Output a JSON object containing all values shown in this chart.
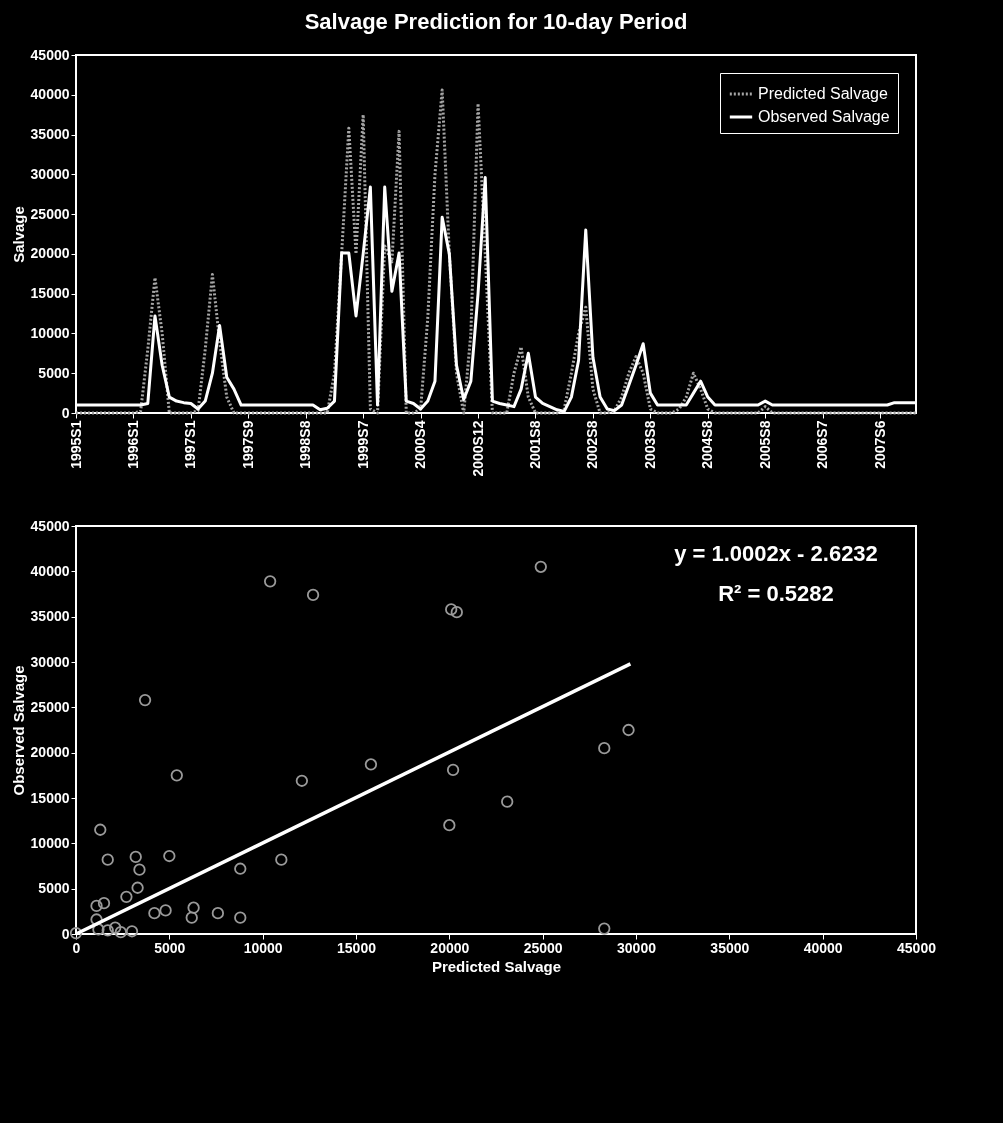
{
  "chart_data": [
    {
      "type": "line",
      "title": "Salvage Prediction for 10-day Period",
      "ylabel": "Salvage",
      "categories": [
        "1995S1",
        null,
        null,
        null,
        null,
        null,
        null,
        null,
        "1996S1",
        null,
        null,
        null,
        null,
        null,
        null,
        null,
        "1997S1",
        null,
        null,
        null,
        null,
        null,
        null,
        null,
        "1997S9",
        null,
        null,
        null,
        null,
        null,
        null,
        null,
        "1998S8",
        null,
        null,
        null,
        null,
        null,
        null,
        null,
        "1999S7",
        null,
        null,
        null,
        null,
        null,
        null,
        null,
        "2000S4",
        null,
        null,
        null,
        null,
        null,
        null,
        null,
        "2000S12",
        null,
        null,
        null,
        null,
        null,
        null,
        null,
        "2001S8",
        null,
        null,
        null,
        null,
        null,
        null,
        null,
        "2002S8",
        null,
        null,
        null,
        null,
        null,
        null,
        null,
        "2003S8",
        null,
        null,
        null,
        null,
        null,
        null,
        null,
        "2004S8",
        null,
        null,
        null,
        null,
        null,
        null,
        null,
        "2005S8",
        null,
        null,
        null,
        null,
        null,
        null,
        null,
        "2006S7",
        null,
        null,
        null,
        null,
        null,
        null,
        null,
        "2007S6",
        null,
        null,
        null,
        null,
        null
      ],
      "series": [
        {
          "name": "Predicted Salvage",
          "color": "#a6a6a6",
          "line_style": "dotted",
          "values": [
            0,
            0,
            0,
            0,
            0,
            0,
            0,
            0,
            0,
            200,
            8000,
            17000,
            10000,
            0,
            0,
            0,
            0,
            300,
            8000,
            17400,
            9000,
            2000,
            0,
            0,
            0,
            0,
            0,
            0,
            0,
            0,
            0,
            0,
            0,
            0,
            0,
            0,
            5000,
            20000,
            35800,
            20000,
            37500,
            500,
            0,
            21000,
            19000,
            35400,
            0,
            0,
            500,
            12000,
            30000,
            40600,
            20000,
            5000,
            0,
            10000,
            38900,
            20000,
            0,
            0,
            0,
            5000,
            8300,
            2000,
            0,
            0,
            0,
            0,
            500,
            5000,
            10000,
            13300,
            3000,
            0,
            0,
            300,
            2000,
            5000,
            7100,
            5000,
            500,
            0,
            0,
            0,
            500,
            2000,
            5000,
            3000,
            500,
            0,
            0,
            0,
            0,
            0,
            0,
            0,
            800,
            0,
            0,
            0,
            0,
            0,
            0,
            0,
            0,
            0,
            0,
            0,
            0,
            0,
            0,
            0,
            0,
            0,
            0,
            0,
            0,
            0
          ]
        },
        {
          "name": "Observed Salvage",
          "color": "#ffffff",
          "line_style": "solid",
          "values": [
            1000,
            1000,
            1000,
            1000,
            1000,
            1000,
            1000,
            1000,
            1000,
            1000,
            1200,
            12200,
            6000,
            2000,
            1500,
            1300,
            1200,
            500,
            1500,
            5000,
            11000,
            4500,
            3000,
            1000,
            1000,
            1000,
            1000,
            1000,
            1000,
            1000,
            1000,
            1000,
            1000,
            1000,
            400,
            600,
            1500,
            20100,
            20100,
            12200,
            20000,
            28400,
            1000,
            28400,
            15300,
            20100,
            1500,
            1200,
            500,
            1500,
            4000,
            24600,
            20000,
            6000,
            1700,
            4000,
            15000,
            29600,
            1500,
            1200,
            1000,
            800,
            3000,
            7500,
            2000,
            1200,
            800,
            400,
            200,
            2000,
            6600,
            23000,
            7000,
            2000,
            500,
            300,
            1000,
            3500,
            6000,
            8700,
            2500,
            1000,
            1000,
            1000,
            1000,
            1000,
            2500,
            4000,
            2000,
            1000,
            1000,
            1000,
            1000,
            1000,
            1000,
            1000,
            1500,
            1000,
            1000,
            1000,
            1000,
            1000,
            1000,
            1000,
            1000,
            1000,
            1000,
            1000,
            1000,
            1000,
            1000,
            1000,
            1000,
            1000,
            1300,
            1300,
            1300,
            1300
          ]
        }
      ],
      "ylim": [
        0,
        45000
      ],
      "yticks": [
        0,
        5000,
        10000,
        15000,
        20000,
        25000,
        30000,
        35000,
        40000,
        45000
      ],
      "legend": "top right"
    },
    {
      "type": "scatter",
      "xlabel": "Predicted Salvage",
      "ylabel": "Observed Salvage",
      "annotations": [
        "y = 1.0002x - 2.6232",
        "R² = 0.5282"
      ],
      "series": [
        {
          "color": "#9a9a9a",
          "marker": "circle",
          "x": [
            10400,
            12700,
            20100,
            20400,
            3700,
            5400,
            12100,
            15800,
            20200,
            23100,
            20000,
            1300,
            1700,
            3200,
            3400,
            5000,
            11000,
            8800,
            3300,
            2700,
            1100,
            1500,
            4200,
            4800,
            6300,
            6200,
            7600,
            8800,
            1100,
            1200,
            2100,
            2400,
            3000,
            0,
            1700,
            24900,
            29600,
            28300,
            28300
          ],
          "values": [
            38900,
            37400,
            35800,
            35500,
            25800,
            17500,
            16900,
            18700,
            18100,
            14600,
            12000,
            11500,
            8200,
            8500,
            7100,
            8600,
            8200,
            7200,
            5100,
            4100,
            3100,
            3400,
            2300,
            2600,
            2900,
            1800,
            2300,
            1800,
            1600,
            500,
            700,
            200,
            300,
            100,
            400,
            40500,
            22500,
            20500,
            600
          ]
        },
        {
          "type": "line",
          "color": "#ffffff",
          "x": [
            0,
            29700
          ],
          "values": [
            0,
            29800
          ]
        }
      ],
      "xlim": [
        0,
        45000
      ],
      "xticks": [
        0,
        5000,
        10000,
        15000,
        20000,
        25000,
        30000,
        35000,
        40000,
        45000
      ],
      "ylim": [
        0,
        45000
      ],
      "yticks": [
        0,
        5000,
        10000,
        15000,
        20000,
        25000,
        30000,
        35000,
        40000,
        45000
      ]
    }
  ]
}
